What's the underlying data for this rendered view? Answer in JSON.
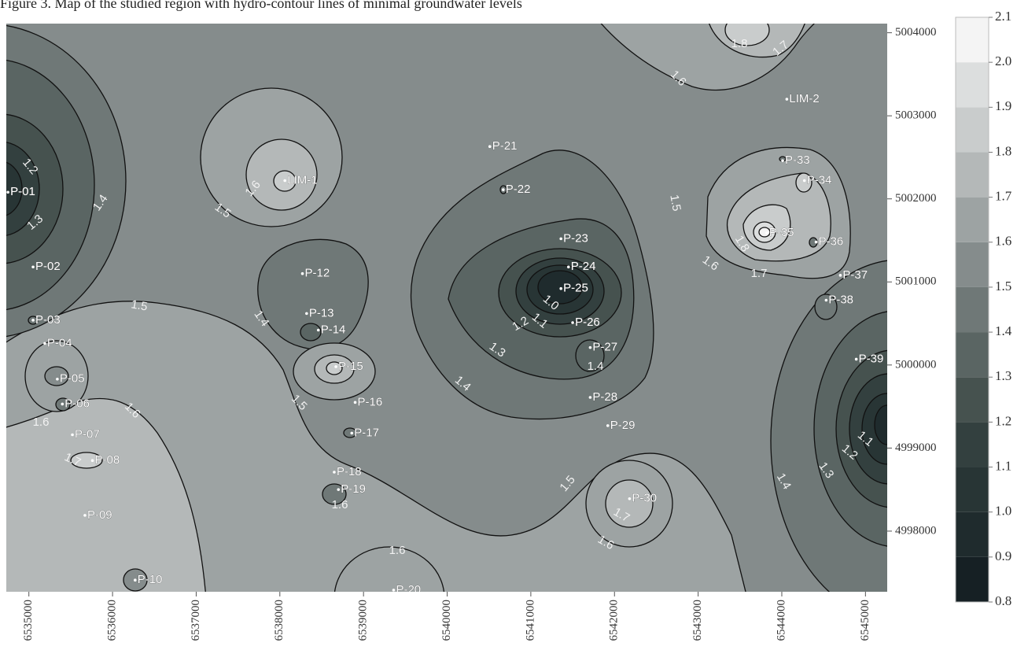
{
  "chart_data": {
    "type": "contour_map",
    "title": "Figure 3. Map of the studied region with hydro-contour lines of minimal groundwater levels",
    "xlim": [
      6534730,
      6545260
    ],
    "ylim": [
      4997270,
      5004110
    ],
    "xticks": [
      6535000,
      6536000,
      6537000,
      6538000,
      6539000,
      6540000,
      6541000,
      6542000,
      6543000,
      6544000,
      6545000
    ],
    "yticks": [
      4998000,
      4999000,
      5000000,
      5001000,
      5002000,
      5003000,
      5004000
    ],
    "wells": [
      {
        "name": "P-01",
        "x": 6534750,
        "y": 5002080
      },
      {
        "name": "LIM-1",
        "x": 6538060,
        "y": 5002220
      },
      {
        "name": "P-02",
        "x": 6535050,
        "y": 5001180
      },
      {
        "name": "P-03",
        "x": 6535050,
        "y": 5000540
      },
      {
        "name": "P-04",
        "x": 6535190,
        "y": 5000260
      },
      {
        "name": "P-05",
        "x": 6535340,
        "y": 4999830
      },
      {
        "name": "P-06",
        "x": 6535400,
        "y": 4999530
      },
      {
        "name": "P-07",
        "x": 6535520,
        "y": 4999160
      },
      {
        "name": "P-08",
        "x": 6535760,
        "y": 4998850
      },
      {
        "name": "P-09",
        "x": 6535670,
        "y": 4998190
      },
      {
        "name": "P-10",
        "x": 6536270,
        "y": 4997410
      },
      {
        "name": "P-12",
        "x": 6538270,
        "y": 5001100
      },
      {
        "name": "P-13",
        "x": 6538320,
        "y": 5000620
      },
      {
        "name": "P-14",
        "x": 6538460,
        "y": 5000420
      },
      {
        "name": "P-15",
        "x": 6538670,
        "y": 4999980
      },
      {
        "name": "P-16",
        "x": 6538900,
        "y": 4999550
      },
      {
        "name": "P-17",
        "x": 6538860,
        "y": 4999180
      },
      {
        "name": "P-18",
        "x": 6538650,
        "y": 4998710
      },
      {
        "name": "P-19",
        "x": 6538700,
        "y": 4998500
      },
      {
        "name": "P-20",
        "x": 6539360,
        "y": 4997290
      },
      {
        "name": "P-21",
        "x": 6540510,
        "y": 5002630
      },
      {
        "name": "P-22",
        "x": 6540670,
        "y": 5002110
      },
      {
        "name": "P-23",
        "x": 6541360,
        "y": 5001520
      },
      {
        "name": "P-24",
        "x": 6541450,
        "y": 5001180
      },
      {
        "name": "P-25",
        "x": 6541360,
        "y": 5000920
      },
      {
        "name": "P-26",
        "x": 6541500,
        "y": 5000510
      },
      {
        "name": "P-27",
        "x": 6541710,
        "y": 5000210
      },
      {
        "name": "P-28",
        "x": 6541710,
        "y": 4999610
      },
      {
        "name": "P-29",
        "x": 6541920,
        "y": 4999270
      },
      {
        "name": "P-30",
        "x": 6542180,
        "y": 4998390
      },
      {
        "name": "LIM-2",
        "x": 6544060,
        "y": 5003200
      },
      {
        "name": "P-33",
        "x": 6544010,
        "y": 5002460
      },
      {
        "name": "P-34",
        "x": 6544270,
        "y": 5002220
      },
      {
        "name": "P-35",
        "x": 6543820,
        "y": 5001590
      },
      {
        "name": "P-36",
        "x": 6544410,
        "y": 5001480
      },
      {
        "name": "P-37",
        "x": 6544700,
        "y": 5001080
      },
      {
        "name": "P-38",
        "x": 6544530,
        "y": 5000780
      },
      {
        "name": "P-39",
        "x": 6544890,
        "y": 5000070
      }
    ],
    "contour_labels": [
      "1.2",
      "1.3",
      "1.4",
      "1.6",
      "1.5",
      "1.5",
      "1.4",
      "1.5",
      "1.6",
      "1.6",
      "1.7",
      "1.6",
      "1.6",
      "1.0",
      "1.1",
      "1.2",
      "1.3",
      "1.4",
      "1.4",
      "1.5",
      "1.7",
      "1.6",
      "1.5",
      "1.6",
      "1.8",
      "1.7",
      "1.6",
      "1.8",
      "1.7",
      "1.4",
      "1.3",
      "1.2",
      "1.1"
    ],
    "colorbar": {
      "ticks": [
        0.8,
        0.9,
        {
          "value": 1,
          "label": "1.0"
        },
        1.1,
        1.2,
        1.3,
        1.4,
        1.5,
        1.6,
        1.7,
        1.8,
        1.9,
        {
          "value": 2,
          "label": "2.0"
        },
        2.1
      ],
      "colors": [
        "#162024",
        "#1f2b2d",
        "#283535",
        "#33403f",
        "#46524f",
        "#5a6563",
        "#6f7877",
        "#858c8c",
        "#9da3a3",
        "#b4b8b8",
        "#c9cccc",
        "#dcdede",
        "#f4f4f4"
      ]
    }
  }
}
